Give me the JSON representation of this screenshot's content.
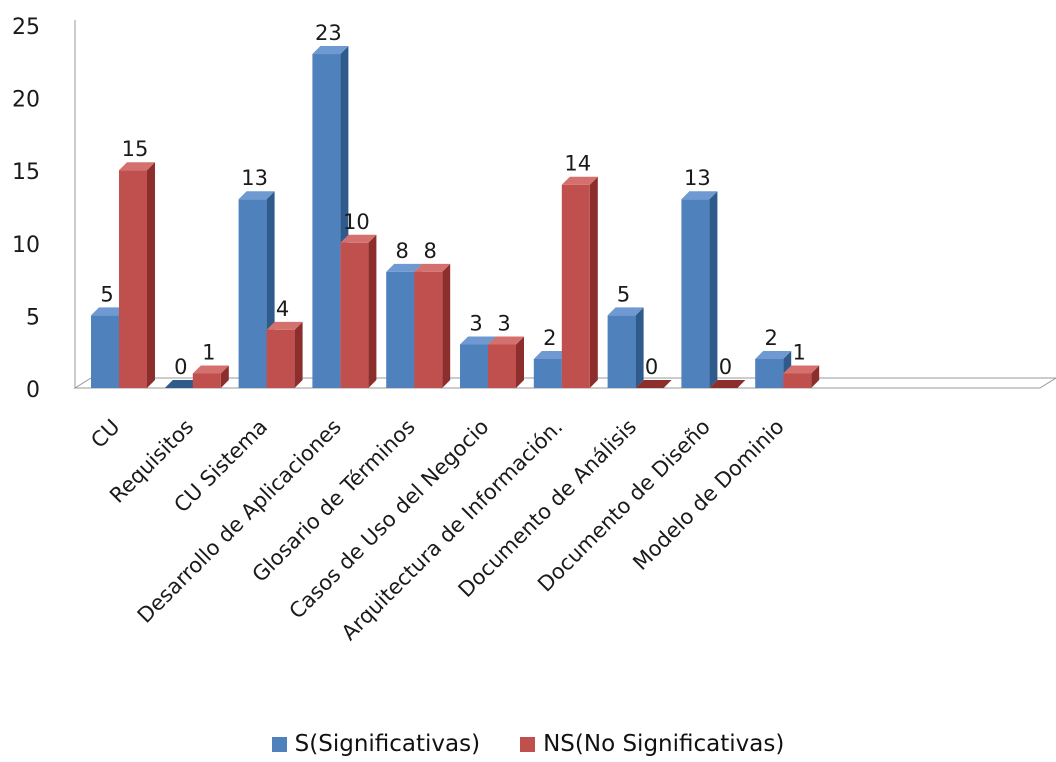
{
  "chart_data": {
    "type": "bar",
    "title": "",
    "xlabel": "",
    "ylabel": "",
    "ylim": [
      0,
      25
    ],
    "yticks": [
      0,
      5,
      10,
      15,
      20,
      25
    ],
    "grid": false,
    "legend_position": "bottom",
    "categories": [
      "CU",
      "Requisitos",
      "CU Sistema",
      "Desarrollo de Aplicaciones",
      "Glosario de Términos",
      "Casos de Uso del Negocio",
      "Arquitectura de Información.",
      "Documento de Análisis",
      "Documento de Diseño",
      "Modelo de Dominio"
    ],
    "series": [
      {
        "name": "S(Significativas)",
        "color": "#4F81BD",
        "side_color": "#2E5A8C",
        "top_color": "#6E9AD1",
        "values": [
          5,
          0,
          13,
          23,
          8,
          3,
          2,
          5,
          13,
          2
        ]
      },
      {
        "name": "NS(No Significativas)",
        "color": "#C0504D",
        "side_color": "#8C2F2C",
        "top_color": "#D4716E",
        "values": [
          15,
          1,
          4,
          10,
          8,
          3,
          14,
          0,
          0,
          1
        ]
      }
    ]
  }
}
